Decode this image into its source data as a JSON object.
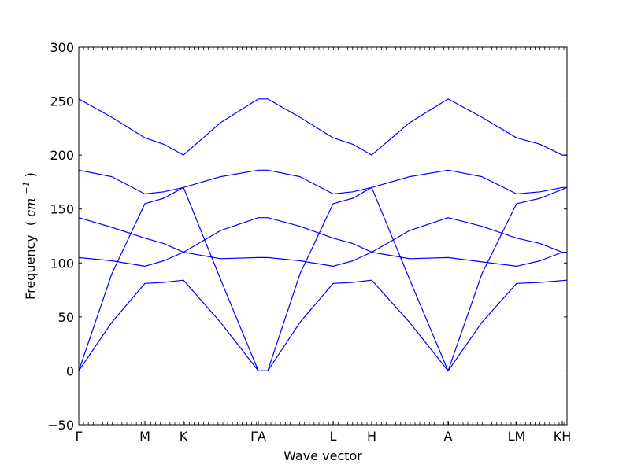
{
  "chart_data": {
    "type": "line",
    "title": "",
    "xlabel": "Wave vector",
    "ylabel": {
      "text": "Frequency",
      "unit_open": "(",
      "unit_base": "cm",
      "unit_exp": "−1",
      "unit_close": ")"
    },
    "ylim": [
      -50,
      300
    ],
    "xlim": [
      0,
      3.1
    ],
    "yticks": [
      -50,
      0,
      50,
      100,
      150,
      200,
      250,
      300
    ],
    "ytick_labels": [
      "−50",
      "0",
      "50",
      "100",
      "150",
      "200",
      "250",
      "300"
    ],
    "zero_line": true,
    "grid": false,
    "legend": "none",
    "line_color": "#0000ff",
    "xticks": [
      {
        "x": 0.0,
        "label": "Γ"
      },
      {
        "x": 0.42,
        "label": "M"
      },
      {
        "x": 0.665,
        "label": "K"
      },
      {
        "x": 1.14,
        "label": "ΓA"
      },
      {
        "x": 1.615,
        "label": "L"
      },
      {
        "x": 1.86,
        "label": "H"
      },
      {
        "x": 2.345,
        "label": "A"
      },
      {
        "x": 2.78,
        "label": "LM"
      },
      {
        "x": 3.07,
        "label": "KH"
      }
    ],
    "series": [
      {
        "x": [
          0,
          0.21,
          0.42,
          0.54,
          0.665,
          0.9,
          1.14,
          1.2,
          1.405,
          1.615,
          1.74,
          1.86,
          2.1,
          2.345,
          2.56,
          2.78,
          2.93,
          3.1
        ],
        "y": [
          0,
          45,
          81,
          82,
          84,
          45,
          0,
          0,
          45,
          81,
          82,
          84,
          45,
          0,
          45,
          81,
          82,
          84
        ]
      },
      {
        "x": [
          0,
          0.21,
          0.42,
          0.54,
          0.665,
          0.9,
          1.14,
          1.2,
          1.405,
          1.615,
          1.74,
          1.86,
          2.1,
          2.345,
          2.56,
          2.78,
          2.93,
          3.1
        ],
        "y": [
          0,
          90,
          155,
          160,
          170,
          85,
          0,
          0,
          90,
          155,
          160,
          170,
          85,
          0,
          90,
          155,
          160,
          170
        ]
      },
      {
        "x": [
          0,
          0.21,
          0.42,
          0.54,
          0.665,
          0.9,
          1.14,
          1.2,
          1.405,
          1.615,
          1.74,
          1.86,
          2.1,
          2.345,
          2.56,
          2.78,
          2.93,
          3.07,
          3.1
        ],
        "y": [
          105,
          102,
          97,
          102,
          110,
          104,
          105,
          105,
          102,
          97,
          102,
          110,
          104,
          105,
          101,
          97,
          102,
          110,
          110
        ]
      },
      {
        "x": [
          0,
          0.21,
          0.42,
          0.54,
          0.665,
          0.9,
          1.14,
          1.2,
          1.405,
          1.615,
          1.74,
          1.86,
          2.1,
          2.345,
          2.56,
          2.78,
          2.93,
          3.07,
          3.1
        ],
        "y": [
          142,
          133,
          123,
          118,
          110,
          130,
          142,
          142,
          134,
          123,
          118,
          110,
          130,
          142,
          134,
          123,
          118,
          110,
          110
        ]
      },
      {
        "x": [
          0,
          0.21,
          0.42,
          0.54,
          0.665,
          0.9,
          1.14,
          1.2,
          1.405,
          1.615,
          1.74,
          1.86,
          2.1,
          2.345,
          2.56,
          2.78,
          2.93,
          3.07,
          3.1
        ],
        "y": [
          186,
          180,
          164,
          166,
          170,
          180,
          186,
          186,
          180,
          164,
          166,
          170,
          180,
          186,
          180,
          164,
          166,
          170,
          170
        ]
      },
      {
        "x": [
          0,
          0.21,
          0.42,
          0.54,
          0.665,
          0.9,
          1.14,
          1.2,
          1.405,
          1.615,
          1.74,
          1.86,
          2.1,
          2.345,
          2.56,
          2.78,
          2.93,
          3.07,
          3.1
        ],
        "y": [
          252,
          235,
          216,
          210,
          200,
          230,
          252,
          252,
          235,
          216,
          210,
          200,
          230,
          252,
          235,
          216,
          210,
          200,
          200
        ]
      }
    ]
  }
}
